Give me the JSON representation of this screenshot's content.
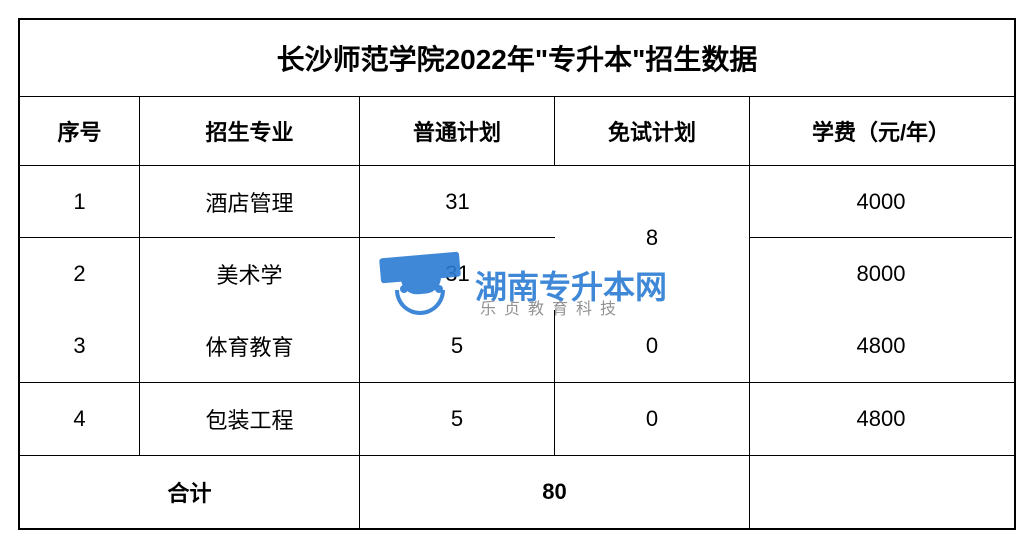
{
  "table": {
    "title": "长沙师范学院2022年\"专升本\"招生数据",
    "headers": {
      "seq": "序号",
      "major": "招生专业",
      "regular_plan": "普通计划",
      "exempt_plan": "免试计划",
      "tuition": "学费（元/年）"
    },
    "rows": [
      {
        "seq": "1",
        "major": "酒店管理",
        "regular": "31",
        "tuition": "4000"
      },
      {
        "seq": "2",
        "major": "美术学",
        "regular": "31",
        "tuition": "8000"
      },
      {
        "seq": "3",
        "major": "体育教育",
        "regular": "5",
        "exempt": "0",
        "tuition": "4800"
      },
      {
        "seq": "4",
        "major": "包装工程",
        "regular": "5",
        "exempt": "0",
        "tuition": "4800"
      }
    ],
    "merged_exempt_rows_1_2": "8",
    "total": {
      "label": "合计",
      "value": "80"
    }
  },
  "watermark": {
    "main_text": "湖南专升本网",
    "sub_text": "乐贞教育科技",
    "brand_color": "#2b7cd3",
    "sub_color": "#888888"
  },
  "styling": {
    "border_color": "#000000",
    "background_color": "#ffffff",
    "title_fontsize": 28,
    "header_fontsize": 22,
    "body_fontsize": 22,
    "font_family": "Microsoft YaHei"
  }
}
